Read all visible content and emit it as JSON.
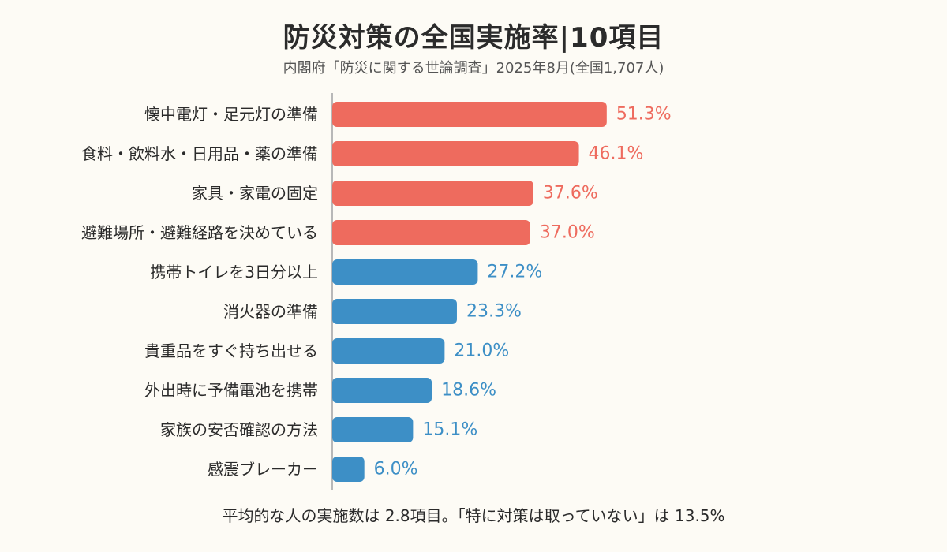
{
  "title": "防災対策の全国実施率|10項目",
  "subtitle": "内閣府「防災に関する世論調査」2025年8月(全国1,707人)",
  "footer": "平均的な人の実施数は 2.8項目。「特に対策は取っていない」は 13.5%",
  "colors": {
    "top": "#ee6b5e",
    "rest": "#3d8fc6",
    "axis": "#b8b8b8"
  },
  "chart_data": {
    "type": "bar",
    "orientation": "horizontal",
    "xlim": [
      0,
      60
    ],
    "categories": [
      "懐中電灯・足元灯の準備",
      "食料・飲料水・日用品・薬の準備",
      "家具・家電の固定",
      "避難場所・避難経路を決めている",
      "携帯トイレを3日分以上",
      "消火器の準備",
      "貴重品をすぐ持ち出せる",
      "外出時に予備電池を携帯",
      "家族の安否確認の方法",
      "感震ブレーカー"
    ],
    "values": [
      51.3,
      46.1,
      37.6,
      37.0,
      27.2,
      23.3,
      21.0,
      18.6,
      15.1,
      6.0
    ],
    "value_labels": [
      "51.3%",
      "46.1%",
      "37.6%",
      "37.0%",
      "27.2%",
      "23.3%",
      "21.0%",
      "18.6%",
      "15.1%",
      "6.0%"
    ],
    "highlight_top_n": 4,
    "grid": false,
    "legend": "none"
  }
}
